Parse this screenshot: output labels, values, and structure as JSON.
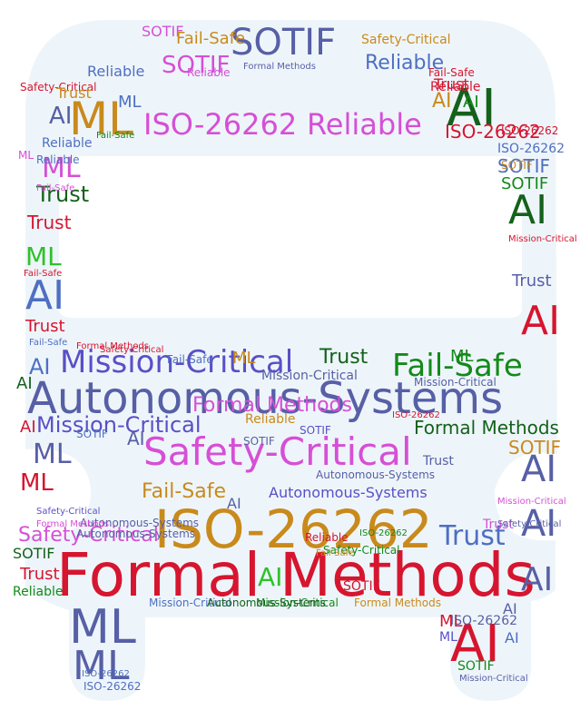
{
  "palette": {
    "background": "#ffffff",
    "silhouette": "#eef5fa",
    "red": "#d6152f",
    "green": "#138a1a",
    "bright_green": "#2fc12a",
    "dark_green": "#14611b",
    "gold": "#c98a1c",
    "violet": "#d64fd6",
    "purple": "#5a4fc7",
    "slate": "#575fa6",
    "blue": "#4e6fc2",
    "grey": "#8a8a8a"
  },
  "words": [
    {
      "text": "Formal Methods",
      "color": "red"
    },
    {
      "text": "Autonomous-Systems",
      "color": "slate"
    },
    {
      "text": "ISO-26262",
      "color": "gold"
    },
    {
      "text": "Safety-Critical",
      "color": "violet"
    },
    {
      "text": "Mission-Critical",
      "color": "purple"
    },
    {
      "text": "Fail-Safe",
      "color": "green"
    },
    {
      "text": "SOTIF",
      "color": "slate"
    },
    {
      "text": "Reliable",
      "color": "violet"
    },
    {
      "text": "ISO-26262",
      "color": "violet"
    },
    {
      "text": "ML",
      "color": "gold"
    },
    {
      "text": "AI",
      "color": "dark_green"
    },
    {
      "text": "AI",
      "color": "red"
    },
    {
      "text": "AI",
      "color": "red"
    },
    {
      "text": "AI",
      "color": "blue"
    },
    {
      "text": "AI",
      "color": "slate"
    },
    {
      "text": "AI",
      "color": "slate"
    },
    {
      "text": "AI",
      "color": "slate"
    },
    {
      "text": "AI",
      "color": "dark_green"
    },
    {
      "text": "ML",
      "color": "slate"
    },
    {
      "text": "ML",
      "color": "slate"
    },
    {
      "text": "ML",
      "color": "slate"
    },
    {
      "text": "Trust",
      "color": "blue"
    },
    {
      "text": "Trust",
      "color": "dark_green"
    },
    {
      "text": "Fail-Safe",
      "color": "gold"
    },
    {
      "text": "Autonomous-Systems",
      "color": "purple"
    },
    {
      "text": "Formal Methods",
      "color": "violet"
    },
    {
      "text": "Mission-Critical",
      "color": "purple"
    },
    {
      "text": "Formal Methods",
      "color": "dark_green"
    },
    {
      "text": "SOTIF",
      "color": "violet"
    },
    {
      "text": "SOTIF",
      "color": "violet"
    },
    {
      "text": "Reliable",
      "color": "blue"
    },
    {
      "text": "ISO-26262",
      "color": "red"
    },
    {
      "text": "ML",
      "color": "violet"
    },
    {
      "text": "ML",
      "color": "red"
    },
    {
      "text": "ML",
      "color": "bright_green"
    },
    {
      "text": "ML",
      "color": "blue"
    },
    {
      "text": "ML",
      "color": "blue"
    },
    {
      "text": "ML",
      "color": "violet"
    },
    {
      "text": "Safety-Critical",
      "color": "violet"
    },
    {
      "text": "Safety-Critical",
      "color": "red"
    },
    {
      "text": "Trust",
      "color": "red"
    },
    {
      "text": "Trust",
      "color": "red"
    },
    {
      "text": "Trust",
      "color": "red"
    },
    {
      "text": "Trust",
      "color": "slate"
    },
    {
      "text": "SOTIF",
      "color": "purple"
    },
    {
      "text": "SOTIF",
      "color": "blue"
    },
    {
      "text": "SOTIF",
      "color": "green"
    },
    {
      "text": "SOTIF",
      "color": "gold"
    },
    {
      "text": "SOTIF",
      "color": "dark_green"
    },
    {
      "text": "Reliable",
      "color": "red"
    },
    {
      "text": "Reliable",
      "color": "blue"
    },
    {
      "text": "Reliable",
      "color": "blue"
    },
    {
      "text": "ISO-26262",
      "color": "blue"
    },
    {
      "text": "ISO-26262",
      "color": "red"
    },
    {
      "text": "ISO-26262",
      "color": "green"
    },
    {
      "text": "ISO-26262",
      "color": "blue"
    },
    {
      "text": "Fail-Safe",
      "color": "blue"
    },
    {
      "text": "Fail-Safe",
      "color": "gold"
    },
    {
      "text": "Autonomous-Systems",
      "color": "slate"
    },
    {
      "text": "Autonomous-Systems",
      "color": "slate"
    },
    {
      "text": "Mission-Critical",
      "color": "slate"
    },
    {
      "text": "Mission-Critical",
      "color": "slate"
    },
    {
      "text": "Formal Methods",
      "color": "gold"
    },
    {
      "text": "Safety-Critical",
      "color": "gold"
    },
    {
      "text": "Safety-Critical",
      "color": "green"
    },
    {
      "text": "AI",
      "color": "dark_green"
    },
    {
      "text": "AI",
      "color": "slate"
    },
    {
      "text": "AI",
      "color": "slate"
    },
    {
      "text": "AI",
      "color": "slate"
    },
    {
      "text": "AI",
      "color": "gold"
    },
    {
      "text": "AI",
      "color": "green"
    },
    {
      "text": "AI",
      "color": "red"
    },
    {
      "text": "AI",
      "color": "blue"
    },
    {
      "text": "AI",
      "color": "slate"
    },
    {
      "text": "AI",
      "color": "bright_green"
    },
    {
      "text": "AI",
      "color": "blue"
    },
    {
      "text": "ML",
      "color": "red"
    },
    {
      "text": "ML",
      "color": "purple"
    },
    {
      "text": "ML",
      "color": "gold"
    },
    {
      "text": "ML",
      "color": "green"
    },
    {
      "text": "Trust",
      "color": "gold"
    },
    {
      "text": "Trust",
      "color": "dark_green"
    },
    {
      "text": "Trust",
      "color": "violet"
    },
    {
      "text": "Trust",
      "color": "red"
    },
    {
      "text": "Trust",
      "color": "slate"
    },
    {
      "text": "SOTIF",
      "color": "slate"
    },
    {
      "text": "SOTIF",
      "color": "blue"
    },
    {
      "text": "SOTIF",
      "color": "red"
    },
    {
      "text": "SOTIF",
      "color": "gold"
    },
    {
      "text": "SOTIF",
      "color": "green"
    },
    {
      "text": "Reliable",
      "color": "violet"
    },
    {
      "text": "Reliable",
      "color": "red"
    },
    {
      "text": "Reliable",
      "color": "green"
    },
    {
      "text": "Reliable",
      "color": "gold"
    },
    {
      "text": "Reliable",
      "color": "blue"
    },
    {
      "text": "Fail-Safe",
      "color": "red"
    },
    {
      "text": "Fail-Safe",
      "color": "red"
    },
    {
      "text": "Fail-Safe",
      "color": "violet"
    },
    {
      "text": "Fail-Safe",
      "color": "green"
    },
    {
      "text": "Fail-Safe",
      "color": "gold"
    },
    {
      "text": "Fail-Safe",
      "color": "blue"
    },
    {
      "text": "ISO-26262",
      "color": "slate"
    },
    {
      "text": "ISO-26262",
      "color": "blue"
    },
    {
      "text": "ISO-26262",
      "color": "red"
    },
    {
      "text": "Mission-Critical",
      "color": "green"
    },
    {
      "text": "Mission-Critical",
      "color": "violet"
    },
    {
      "text": "Mission-Critical",
      "color": "red"
    },
    {
      "text": "Mission-Critical",
      "color": "blue"
    },
    {
      "text": "Mission-Critical",
      "color": "slate"
    },
    {
      "text": "Autonomous-Systems",
      "color": "slate"
    },
    {
      "text": "Autonomous-Systems",
      "color": "dark_green"
    },
    {
      "text": "Formal Methods",
      "color": "red"
    },
    {
      "text": "Formal Methods",
      "color": "violet"
    },
    {
      "text": "Formal Methods",
      "color": "slate"
    },
    {
      "text": "Safety-Critical",
      "color": "slate"
    },
    {
      "text": "Safety-Critical",
      "color": "red"
    },
    {
      "text": "Safety-Critical",
      "color": "purple"
    }
  ]
}
